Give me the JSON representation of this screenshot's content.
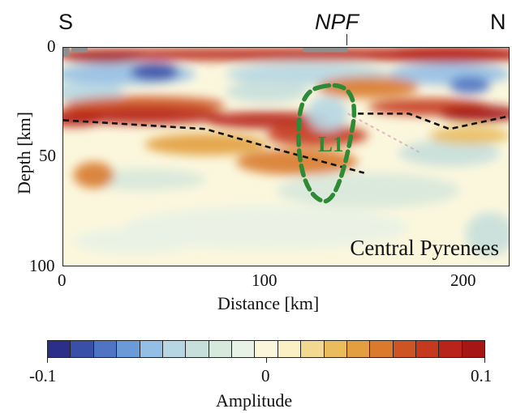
{
  "figure": {
    "left_direction": "S",
    "right_direction": "N",
    "fault_label": "NPF",
    "region_label": "Central Pyrenees",
    "anomaly_label": "L1"
  },
  "axes": {
    "ylabel": "Depth [km]",
    "xlabel": "Distance [km]",
    "y_ticks": [
      "0",
      "50",
      "100"
    ],
    "x_ticks": [
      "0",
      "100",
      "200"
    ],
    "xlim": [
      0,
      220
    ],
    "ylim": [
      0,
      100
    ]
  },
  "colorbar": {
    "label": "Amplitude",
    "tick_labels": [
      "-0.1",
      "0",
      "0.1"
    ],
    "range": [
      -0.1,
      0.1
    ],
    "colors": [
      "#2b2f8a",
      "#3a4fa8",
      "#4f74c4",
      "#6b9ad8",
      "#93bfe6",
      "#b6d6e3",
      "#c7dfdb",
      "#d7e8dc",
      "#e9f2e6",
      "#fbf7dd",
      "#fbefc4",
      "#f2d98f",
      "#e9bd5c",
      "#e29e3f",
      "#d97a2e",
      "#ce5523",
      "#c53a1e",
      "#b8241a",
      "#a51715"
    ]
  },
  "chart_data": {
    "type": "heatmap",
    "xlabel": "Distance [km]",
    "ylabel": "Depth [km]",
    "xlim": [
      0,
      220
    ],
    "ylim": [
      0,
      100
    ],
    "y_inverted": true,
    "moho_trace": [
      {
        "x": 0,
        "y": 33
      },
      {
        "x": 70,
        "y": 37
      },
      {
        "x": 100,
        "y": 45
      },
      {
        "x": 148,
        "y": 57
      }
    ],
    "moho_trace_north": [
      {
        "x": 145,
        "y": 30
      },
      {
        "x": 170,
        "y": 30
      },
      {
        "x": 190,
        "y": 37
      },
      {
        "x": 220,
        "y": 31
      }
    ],
    "fault_position_x": 140,
    "colorscale_range": [
      -0.1,
      0.1
    ]
  }
}
